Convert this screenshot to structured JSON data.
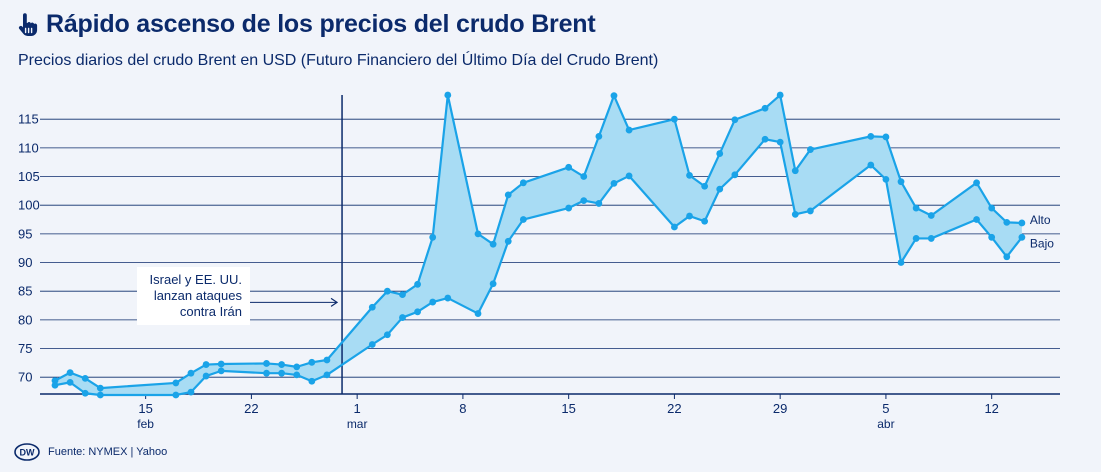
{
  "header": {
    "title": "Rápido ascenso de los precios del crudo Brent",
    "subtitle": "Precios diarios del crudo Brent en USD (Futuro Financiero del Último Día del Crudo Brent)"
  },
  "footer": {
    "source": "Fuente: NYMEX | Yahoo",
    "logo_text": "DW"
  },
  "colors": {
    "background": "#f1f4fa",
    "series": "#1aa3e8",
    "band_fill": "#a8dcf4",
    "grid": "#0b2a6b",
    "text": "#0b2a6b"
  },
  "icons": {
    "title_icon": "hand-pointer-icon"
  },
  "chart_data": {
    "type": "area",
    "title": "Rápido ascenso de los precios del crudo Brent",
    "subtitle": "Precios diarios del crudo Brent en USD (Futuro Financiero del Último Día del Crudo Brent)",
    "x_domain": [
      "2025-02-09",
      "2025-04-15"
    ],
    "ylim": [
      67,
      120
    ],
    "yticks": [
      70,
      75,
      80,
      85,
      90,
      95,
      100,
      105,
      110,
      115
    ],
    "grid": true,
    "xticks": [
      {
        "date": "2025-02-15",
        "label": "15",
        "month": "feb"
      },
      {
        "date": "2025-02-22",
        "label": "22",
        "month": ""
      },
      {
        "date": "2025-03-01",
        "label": "1",
        "month": "mar"
      },
      {
        "date": "2025-03-08",
        "label": "8",
        "month": ""
      },
      {
        "date": "2025-03-15",
        "label": "15",
        "month": ""
      },
      {
        "date": "2025-03-22",
        "label": "22",
        "month": ""
      },
      {
        "date": "2025-03-29",
        "label": "29",
        "month": ""
      },
      {
        "date": "2025-04-05",
        "label": "5",
        "month": "abr"
      },
      {
        "date": "2025-04-12",
        "label": "12",
        "month": ""
      }
    ],
    "series": [
      {
        "name": "Alto",
        "points": [
          [
            "2025-02-09",
            69.4
          ],
          [
            "2025-02-10",
            70.8
          ],
          [
            "2025-02-11",
            69.8
          ],
          [
            "2025-02-12",
            68.1
          ],
          [
            "2025-02-17",
            69.0
          ],
          [
            "2025-02-18",
            70.7
          ],
          [
            "2025-02-19",
            72.2
          ],
          [
            "2025-02-20",
            72.3
          ],
          [
            "2025-02-23",
            72.4
          ],
          [
            "2025-02-24",
            72.2
          ],
          [
            "2025-02-25",
            71.8
          ],
          [
            "2025-02-26",
            72.6
          ],
          [
            "2025-02-27",
            73.0
          ],
          [
            "2025-03-02",
            82.2
          ],
          [
            "2025-03-03",
            85.0
          ],
          [
            "2025-03-04",
            84.4
          ],
          [
            "2025-03-05",
            86.2
          ],
          [
            "2025-03-06",
            94.4
          ],
          [
            "2025-03-07",
            119.2
          ],
          [
            "2025-03-09",
            95.0
          ],
          [
            "2025-03-10",
            93.2
          ],
          [
            "2025-03-11",
            101.8
          ],
          [
            "2025-03-12",
            103.9
          ],
          [
            "2025-03-15",
            106.6
          ],
          [
            "2025-03-16",
            105.0
          ],
          [
            "2025-03-17",
            112.0
          ],
          [
            "2025-03-18",
            119.1
          ],
          [
            "2025-03-19",
            113.1
          ],
          [
            "2025-03-22",
            115.0
          ],
          [
            "2025-03-23",
            105.2
          ],
          [
            "2025-03-24",
            103.3
          ],
          [
            "2025-03-25",
            109.0
          ],
          [
            "2025-03-26",
            114.9
          ],
          [
            "2025-03-28",
            116.9
          ],
          [
            "2025-03-29",
            119.2
          ],
          [
            "2025-03-30",
            106.0
          ],
          [
            "2025-03-31",
            109.7
          ],
          [
            "2025-04-04",
            112.0
          ],
          [
            "2025-04-05",
            111.9
          ],
          [
            "2025-04-06",
            104.1
          ],
          [
            "2025-04-07",
            99.5
          ],
          [
            "2025-04-08",
            98.2
          ],
          [
            "2025-04-11",
            103.9
          ],
          [
            "2025-04-12",
            99.5
          ],
          [
            "2025-04-13",
            97.0
          ],
          [
            "2025-04-14",
            96.9
          ]
        ]
      },
      {
        "name": "Bajo",
        "points": [
          [
            "2025-02-09",
            68.6
          ],
          [
            "2025-02-10",
            69.1
          ],
          [
            "2025-02-11",
            67.2
          ],
          [
            "2025-02-12",
            66.9
          ],
          [
            "2025-02-17",
            66.9
          ],
          [
            "2025-02-18",
            67.4
          ],
          [
            "2025-02-19",
            70.2
          ],
          [
            "2025-02-20",
            71.1
          ],
          [
            "2025-02-23",
            70.7
          ],
          [
            "2025-02-24",
            70.7
          ],
          [
            "2025-02-25",
            70.4
          ],
          [
            "2025-02-26",
            69.3
          ],
          [
            "2025-02-27",
            70.4
          ],
          [
            "2025-03-02",
            75.7
          ],
          [
            "2025-03-03",
            77.4
          ],
          [
            "2025-03-04",
            80.4
          ],
          [
            "2025-03-05",
            81.4
          ],
          [
            "2025-03-06",
            83.1
          ],
          [
            "2025-03-07",
            83.8
          ],
          [
            "2025-03-09",
            81.1
          ],
          [
            "2025-03-10",
            86.3
          ],
          [
            "2025-03-11",
            93.7
          ],
          [
            "2025-03-12",
            97.5
          ],
          [
            "2025-03-15",
            99.5
          ],
          [
            "2025-03-16",
            100.8
          ],
          [
            "2025-03-17",
            100.3
          ],
          [
            "2025-03-18",
            103.8
          ],
          [
            "2025-03-19",
            105.1
          ],
          [
            "2025-03-22",
            96.2
          ],
          [
            "2025-03-23",
            98.1
          ],
          [
            "2025-03-24",
            97.2
          ],
          [
            "2025-03-25",
            102.8
          ],
          [
            "2025-03-26",
            105.3
          ],
          [
            "2025-03-28",
            111.5
          ],
          [
            "2025-03-29",
            111.0
          ],
          [
            "2025-03-30",
            98.4
          ],
          [
            "2025-03-31",
            99.0
          ],
          [
            "2025-04-04",
            107.0
          ],
          [
            "2025-04-05",
            104.5
          ],
          [
            "2025-04-06",
            90.0
          ],
          [
            "2025-04-07",
            94.2
          ],
          [
            "2025-04-08",
            94.2
          ],
          [
            "2025-04-11",
            97.5
          ],
          [
            "2025-04-12",
            94.4
          ],
          [
            "2025-04-13",
            91.0
          ],
          [
            "2025-04-14",
            94.4
          ]
        ]
      }
    ],
    "annotation": {
      "date": "2025-02-28",
      "lines": [
        "Israel y EE. UU.",
        "lanzan ataques",
        "contra Irán"
      ],
      "arrow_y": 82
    }
  }
}
